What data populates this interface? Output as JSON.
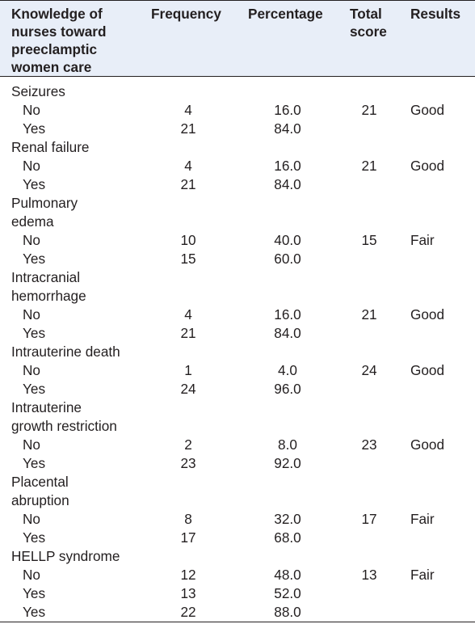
{
  "header": {
    "col1": "Knowledge of\nnurses toward\npreeclamptic\nwomen care",
    "col2": "Frequency",
    "col3": "Percentage",
    "col4": "Total\nscore",
    "col5": "Results"
  },
  "rows": [
    {
      "type": "category",
      "label": "Seizures"
    },
    {
      "type": "data",
      "label": "No",
      "frequency": "4",
      "percentage": "16.0",
      "total": "21",
      "result": "Good"
    },
    {
      "type": "data",
      "label": "Yes",
      "frequency": "21",
      "percentage": "84.0",
      "total": "",
      "result": ""
    },
    {
      "type": "category",
      "label": "Renal failure"
    },
    {
      "type": "data",
      "label": "No",
      "frequency": "4",
      "percentage": "16.0",
      "total": "21",
      "result": "Good"
    },
    {
      "type": "data",
      "label": "Yes",
      "frequency": "21",
      "percentage": "84.0",
      "total": "",
      "result": ""
    },
    {
      "type": "category",
      "label": "Pulmonary\nedema"
    },
    {
      "type": "data",
      "label": "No",
      "frequency": "10",
      "percentage": "40.0",
      "total": "15",
      "result": "Fair"
    },
    {
      "type": "data",
      "label": "Yes",
      "frequency": "15",
      "percentage": "60.0",
      "total": "",
      "result": ""
    },
    {
      "type": "category",
      "label": "Intracranial\nhemorrhage"
    },
    {
      "type": "data",
      "label": "No",
      "frequency": "4",
      "percentage": "16.0",
      "total": "21",
      "result": "Good"
    },
    {
      "type": "data",
      "label": "Yes",
      "frequency": "21",
      "percentage": "84.0",
      "total": "",
      "result": ""
    },
    {
      "type": "category",
      "label": "Intrauterine death"
    },
    {
      "type": "data",
      "label": "No",
      "frequency": "1",
      "percentage": "4.0",
      "total": "24",
      "result": "Good"
    },
    {
      "type": "data",
      "label": "Yes",
      "frequency": "24",
      "percentage": "96.0",
      "total": "",
      "result": ""
    },
    {
      "type": "category",
      "label": "Intrauterine\ngrowth restriction"
    },
    {
      "type": "data",
      "label": "No",
      "frequency": "2",
      "percentage": "8.0",
      "total": "23",
      "result": "Good"
    },
    {
      "type": "data",
      "label": "Yes",
      "frequency": "23",
      "percentage": "92.0",
      "total": "",
      "result": ""
    },
    {
      "type": "category",
      "label": "Placental\nabruption"
    },
    {
      "type": "data",
      "label": "No",
      "frequency": "8",
      "percentage": "32.0",
      "total": "17",
      "result": "Fair"
    },
    {
      "type": "data",
      "label": "Yes",
      "frequency": "17",
      "percentage": "68.0",
      "total": "",
      "result": ""
    },
    {
      "type": "category",
      "label": "HELLP syndrome"
    },
    {
      "type": "data",
      "label": "No",
      "frequency": "12",
      "percentage": "48.0",
      "total": "13",
      "result": "Fair"
    },
    {
      "type": "data",
      "label": "Yes",
      "frequency": "13",
      "percentage": "52.0",
      "total": "",
      "result": ""
    },
    {
      "type": "data",
      "label": "Yes",
      "frequency": "22",
      "percentage": "88.0",
      "total": "",
      "result": ""
    }
  ]
}
